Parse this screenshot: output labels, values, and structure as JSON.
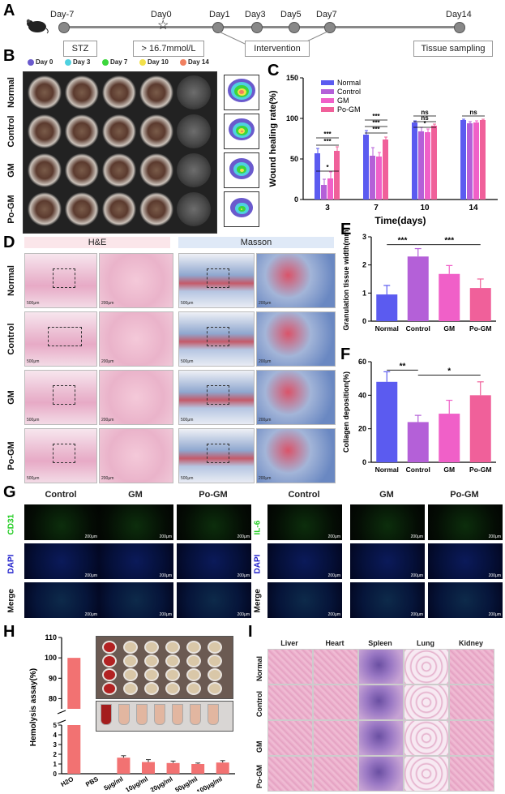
{
  "panel_letters": [
    "A",
    "B",
    "C",
    "D",
    "E",
    "F",
    "G",
    "H",
    "I"
  ],
  "timeline": {
    "days": [
      "Day-7",
      "Day0",
      "Day1",
      "Day3",
      "Day5",
      "Day7",
      "Day14"
    ],
    "boxes": [
      "STZ",
      "> 16.7mmol/L",
      "Intervention",
      "Tissue sampling"
    ]
  },
  "panel_b": {
    "legend": [
      {
        "label": "Day 0",
        "color": "#6a5acd"
      },
      {
        "label": "Day 3",
        "color": "#4fd1e0"
      },
      {
        "label": "Day 7",
        "color": "#3cd63c"
      },
      {
        "label": "Day 10",
        "color": "#f2e04a"
      },
      {
        "label": "Day 14",
        "color": "#f08060"
      }
    ],
    "rows": [
      "Normal",
      "Control",
      "GM",
      "Po-GM"
    ]
  },
  "panel_d": {
    "headers": [
      "H&E",
      "Masson"
    ],
    "rows": [
      "Normal",
      "Control",
      "GM",
      "Po-GM"
    ],
    "scale_labels": [
      "500μm",
      "200μm"
    ]
  },
  "panel_g": {
    "columns": [
      "Control",
      "GM",
      "Po-GM",
      "Control",
      "GM",
      "Po-GM"
    ],
    "left_rows": [
      "CD31",
      "DAPI",
      "Merge"
    ],
    "right_rows": [
      "IL-6",
      "DAPI",
      "Merge"
    ],
    "scale_label": "200μm",
    "marker_colors": {
      "cd31": "#22cc22",
      "il6": "#22cc22",
      "dapi": "#2222cc",
      "merge": "#111111"
    }
  },
  "panel_i": {
    "columns": [
      "Liver",
      "Heart",
      "Spleen",
      "Lung",
      "Kidney"
    ],
    "rows": [
      "Normal",
      "Control",
      "GM",
      "Po-GM"
    ]
  },
  "chart_data": [
    {
      "id": "C",
      "type": "bar",
      "ylabel": "Wound healing rate(%)",
      "xlabel": "Time(days)",
      "categories": [
        "3",
        "7",
        "10",
        "14"
      ],
      "ylim": [
        0,
        150
      ],
      "yticks": [
        0,
        50,
        100,
        150
      ],
      "series": [
        {
          "name": "Normal",
          "color": "#5b5bf0",
          "values": [
            57,
            80,
            95,
            98
          ],
          "errors": [
            6,
            5,
            2,
            1
          ]
        },
        {
          "name": "Control",
          "color": "#b460d8",
          "values": [
            18,
            54,
            84,
            94
          ],
          "errors": [
            7,
            10,
            5,
            2
          ]
        },
        {
          "name": "GM",
          "color": "#f060c8",
          "values": [
            26,
            53,
            83,
            95
          ],
          "errors": [
            8,
            5,
            4,
            2
          ]
        },
        {
          "name": "Po-GM",
          "color": "#f0609a",
          "values": [
            60,
            74,
            91,
            98
          ],
          "errors": [
            5,
            3,
            2,
            1
          ]
        }
      ],
      "annotations": [
        "*",
        "***",
        "***",
        "***",
        "***",
        "***",
        "ns",
        "ns",
        "*",
        "ns"
      ]
    },
    {
      "id": "E",
      "type": "bar",
      "ylabel": "Granulation tissue width(mm)",
      "categories": [
        "Normal",
        "Control",
        "GM",
        "Po-GM"
      ],
      "colors": [
        "#5b5bf0",
        "#b460d8",
        "#f060c8",
        "#f0609a"
      ],
      "values": [
        0.95,
        2.3,
        1.68,
        1.18
      ],
      "errors": [
        0.32,
        0.28,
        0.3,
        0.32
      ],
      "ylim": [
        0,
        3
      ],
      "yticks": [
        0,
        1,
        2,
        3
      ],
      "annotations": [
        "***",
        "***"
      ]
    },
    {
      "id": "F",
      "type": "bar",
      "ylabel": "Collagen deposition(%)",
      "categories": [
        "Normal",
        "Control",
        "GM",
        "Po-GM"
      ],
      "colors": [
        "#5b5bf0",
        "#b460d8",
        "#f060c8",
        "#f0609a"
      ],
      "values": [
        48,
        24,
        29,
        40
      ],
      "errors": [
        6,
        4,
        8,
        8
      ],
      "ylim": [
        0,
        60
      ],
      "yticks": [
        0,
        20,
        40,
        60
      ],
      "annotations": [
        "**",
        "*"
      ]
    },
    {
      "id": "H",
      "type": "bar",
      "ylabel": "Hemolysis assay(%)",
      "categories": [
        "H2O",
        "PBS",
        "5μg/ml",
        "10μg/ml",
        "20μg/ml",
        "50μg/ml",
        "100μg/ml"
      ],
      "values": [
        100,
        0,
        1.65,
        1.2,
        1.1,
        1.0,
        1.15
      ],
      "errors": [
        0,
        0,
        0.2,
        0.25,
        0.2,
        0.1,
        0.2
      ],
      "color": "#f27272",
      "yticks_low": [
        0,
        1,
        2,
        3,
        4,
        5
      ],
      "yticks_high": [
        80,
        90,
        100,
        110
      ]
    }
  ]
}
